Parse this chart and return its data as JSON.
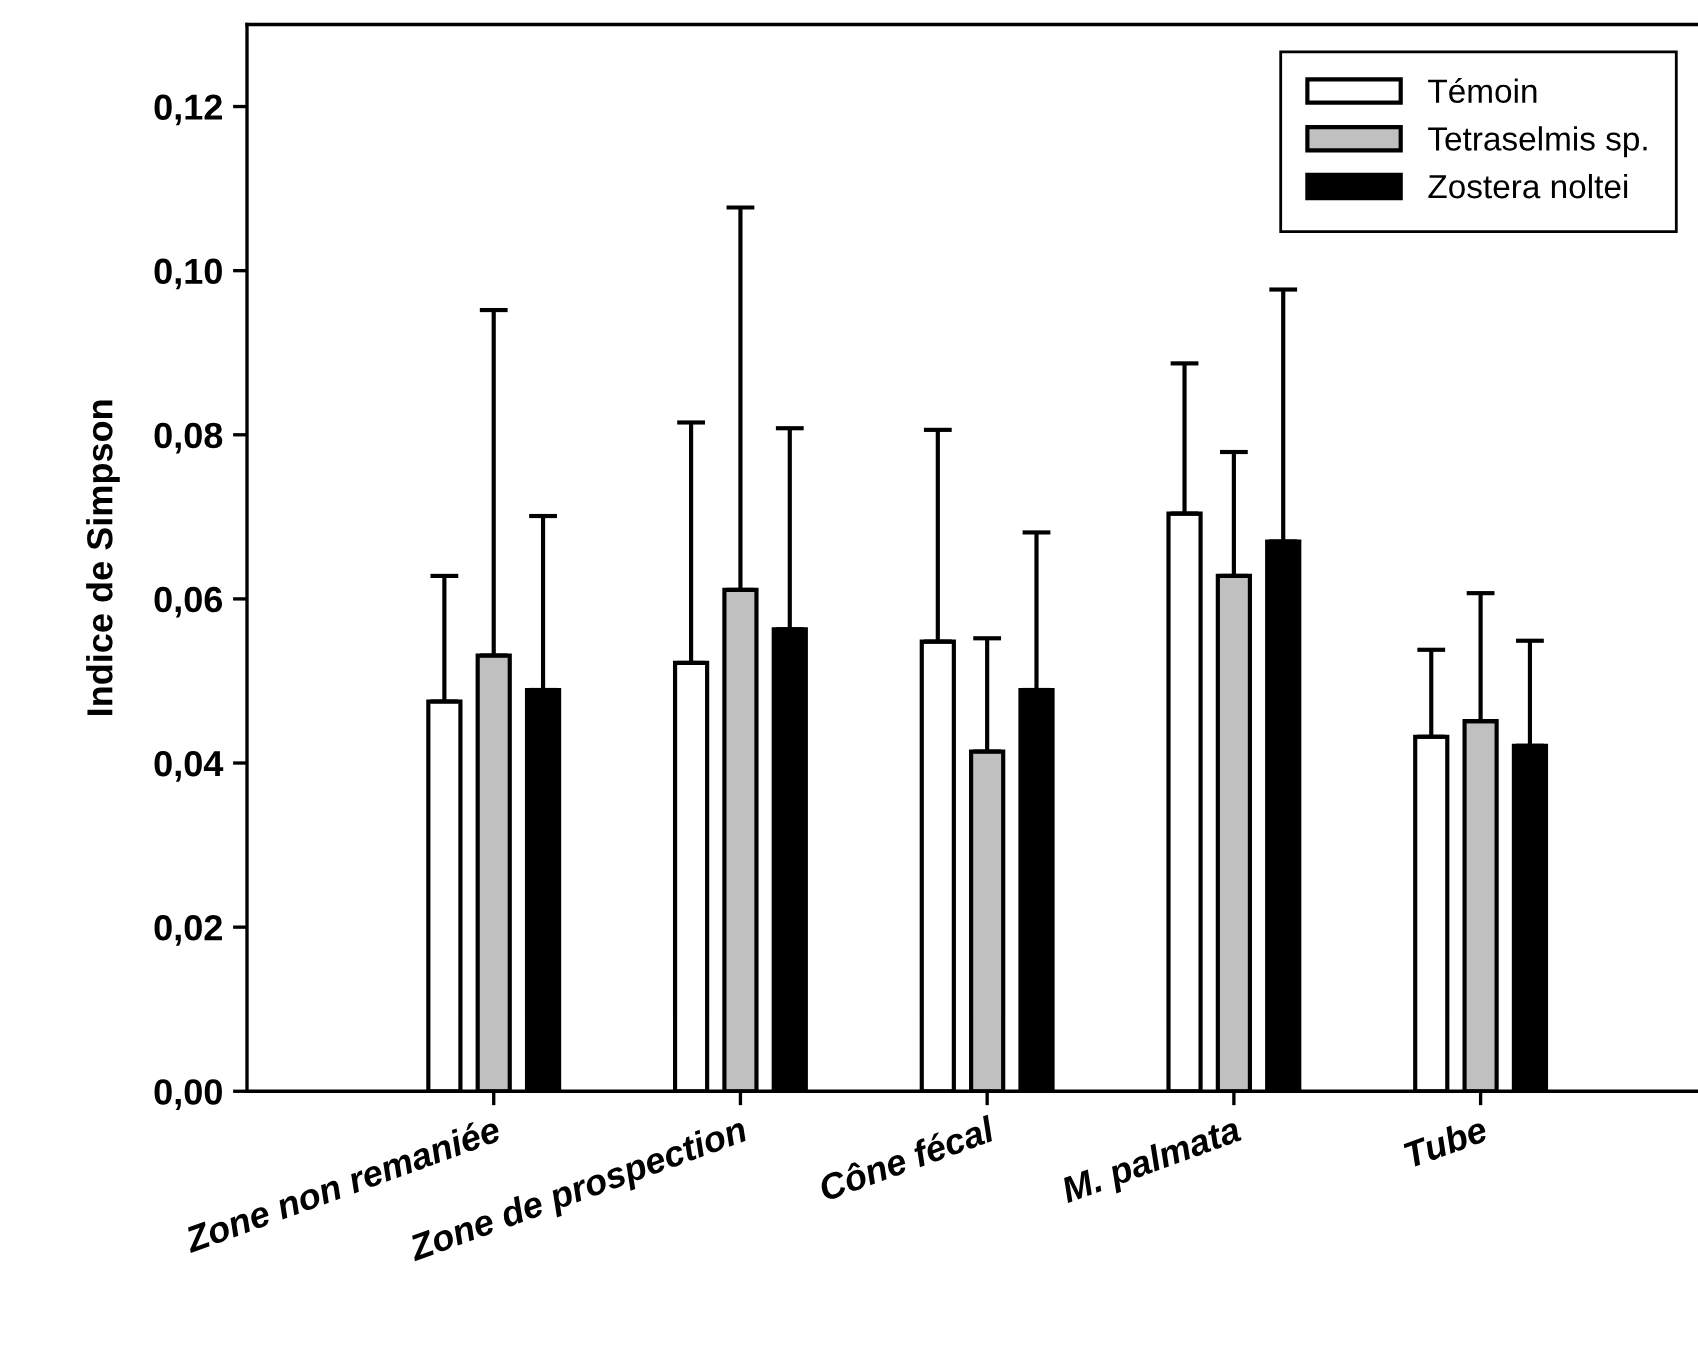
{
  "chart_data": {
    "type": "bar",
    "ylabel": "Indice de Simpson",
    "categories": [
      "Zone non remaniée",
      "Zone de prospection",
      "Cône fécal",
      "M. palmata",
      "Tube"
    ],
    "series": [
      {
        "name": "Témoin",
        "color": "#ffffff",
        "values": [
          0.0475,
          0.0522,
          0.0548,
          0.0704,
          0.0432
        ],
        "errors": [
          [
            0.0475,
            0.0628
          ],
          [
            0.0522,
            0.0815
          ],
          [
            0.0548,
            0.0806
          ],
          [
            0.0704,
            0.0887
          ],
          [
            0.0432,
            0.0538
          ]
        ]
      },
      {
        "name": "Tetraselmis sp.",
        "color": "#c0c0c0",
        "values": [
          0.0531,
          0.0611,
          0.0414,
          0.0628,
          0.0451
        ],
        "errors": [
          [
            0.0531,
            0.0952
          ],
          [
            0.0611,
            0.1077
          ],
          [
            0.0414,
            0.0552
          ],
          [
            0.0628,
            0.0779
          ],
          [
            0.0451,
            0.0607
          ]
        ]
      },
      {
        "name": "Zostera noltei",
        "color": "#000000",
        "values": [
          0.0489,
          0.0563,
          0.0489,
          0.067,
          0.0421
        ],
        "errors": [
          [
            0.0489,
            0.0701
          ],
          [
            0.0563,
            0.0808
          ],
          [
            0.0489,
            0.0681
          ],
          [
            0.067,
            0.0977
          ],
          [
            0.0421,
            0.0549
          ]
        ]
      }
    ],
    "ylim": [
      0,
      0.13
    ],
    "yticks": [
      {
        "value": 0,
        "label": "0,00"
      },
      {
        "value": 0.02,
        "label": "0,02"
      },
      {
        "value": 0.04,
        "label": "0,04"
      },
      {
        "value": 0.06,
        "label": "0,06"
      },
      {
        "value": 0.08,
        "label": "0,08"
      },
      {
        "value": 0.1,
        "label": "0,10"
      },
      {
        "value": 0.12,
        "label": "0,12"
      }
    ],
    "legend": "top right",
    "grid": false
  }
}
